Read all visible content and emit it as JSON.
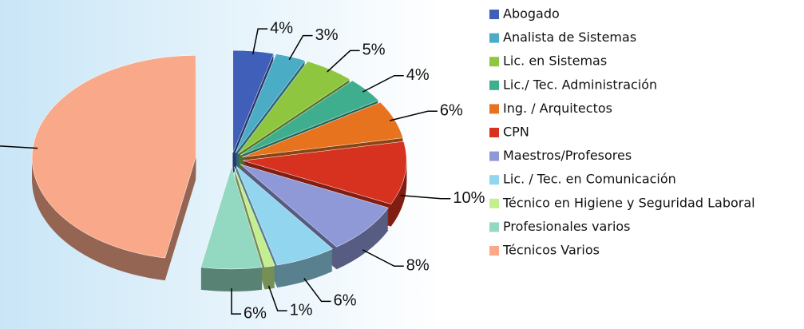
{
  "chart_data": {
    "type": "pie",
    "categories": [
      "Abogado",
      "Analista de Sistemas",
      "Lic. en Sistemas",
      "Lic./ Tec.  Administración",
      "Ing. / Arquitectos",
      "CPN",
      "Maestros/Profesores",
      "Lic. / Tec. en Comunicación",
      "Técnico en Higiene y Seguridad Laboral",
      "Profesionales varios",
      "Técnicos Varios"
    ],
    "values": [
      4,
      3,
      5,
      4,
      6,
      10,
      8,
      6,
      1,
      6,
      47
    ],
    "value_labels": [
      "4%",
      "3%",
      "5%",
      "4%",
      "6%",
      "10%",
      "8%",
      "6%",
      "1%",
      "6%",
      "47%"
    ],
    "colors": [
      "#3f5fb8",
      "#4bacc6",
      "#8fc63f",
      "#3fae8f",
      "#e8731f",
      "#d7321f",
      "#8f99d8",
      "#92d5ee",
      "#c4ef8f",
      "#93d8c0",
      "#f9a98a"
    ],
    "legend": "right"
  }
}
